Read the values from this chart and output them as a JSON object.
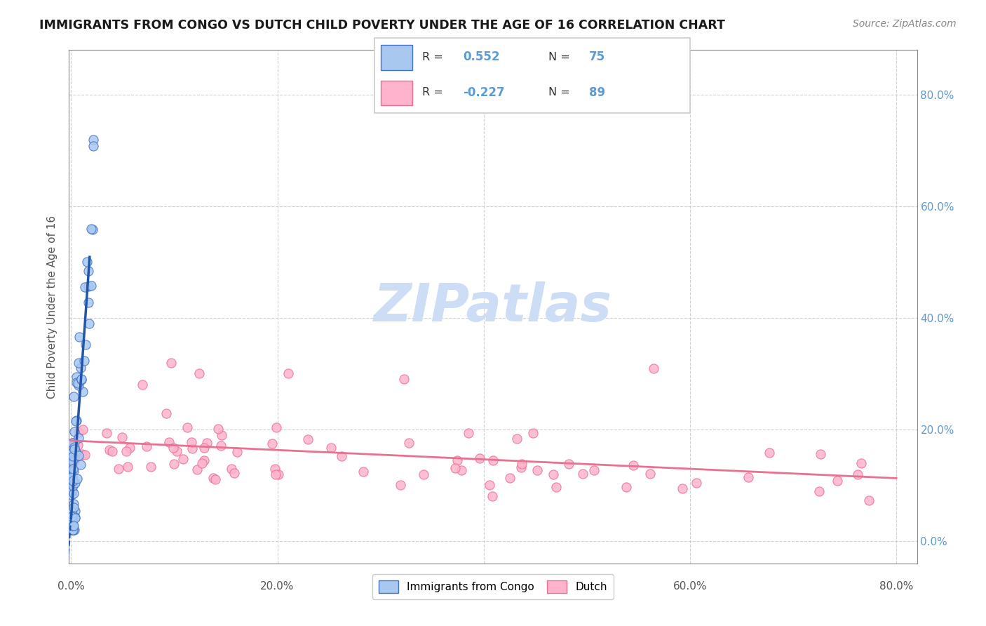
{
  "title": "IMMIGRANTS FROM CONGO VS DUTCH CHILD POVERTY UNDER THE AGE OF 16 CORRELATION CHART",
  "source": "Source: ZipAtlas.com",
  "ylabel": "Child Poverty Under the Age of 16",
  "xlim": [
    -0.002,
    0.82
  ],
  "ylim": [
    -0.04,
    0.88
  ],
  "xticks": [
    0.0,
    0.2,
    0.4,
    0.6,
    0.8
  ],
  "xtick_labels": [
    "0.0%",
    "20.0%",
    "40.0%",
    "60.0%",
    "80.0%"
  ],
  "yticks": [
    0.0,
    0.2,
    0.4,
    0.6,
    0.8
  ],
  "ytick_labels": [
    "0.0%",
    "20.0%",
    "40.0%",
    "60.0%",
    "80.0%"
  ],
  "blue_R": 0.552,
  "blue_N": 75,
  "pink_R": -0.227,
  "pink_N": 89,
  "blue_marker_color": "#a8c8f0",
  "blue_edge_color": "#4472c4",
  "pink_marker_color": "#ffb3cc",
  "pink_edge_color": "#e87090",
  "blue_line_color": "#2255aa",
  "pink_line_color": "#e87090",
  "watermark_text": "ZIPatlas",
  "watermark_color": "#ccddf5",
  "legend_label_blue": "Immigrants from Congo",
  "legend_label_pink": "Dutch",
  "title_color": "#1a1a1a",
  "source_color": "#888888",
  "grid_color": "#cccccc",
  "axis_color": "#888888"
}
